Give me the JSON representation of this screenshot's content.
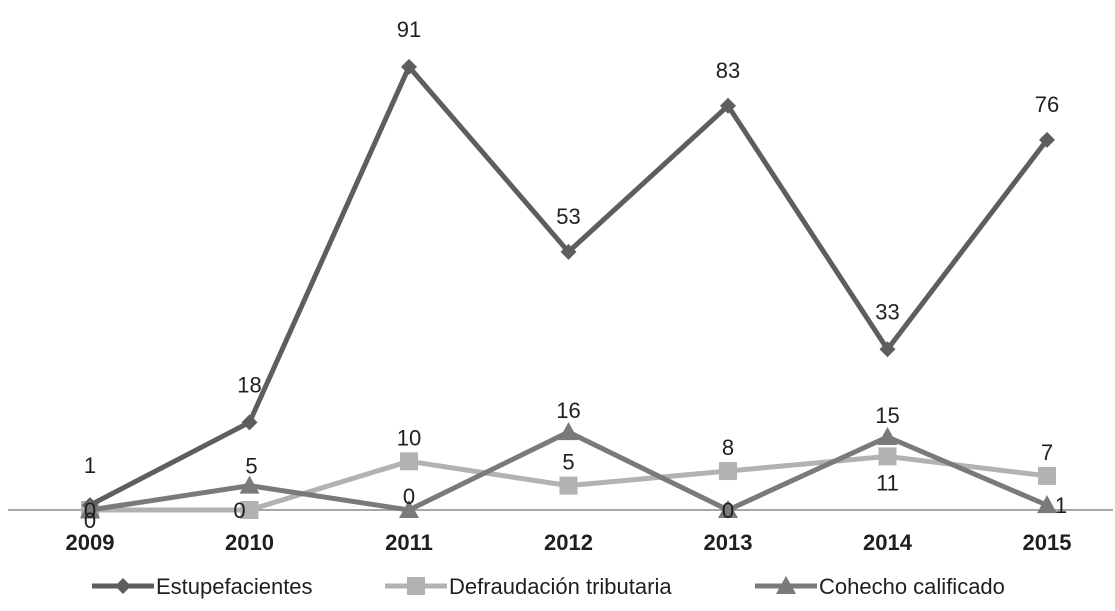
{
  "chart_data": {
    "type": "line",
    "title": "",
    "xlabel": "",
    "ylabel": "",
    "categories": [
      "2009",
      "2010",
      "2011",
      "2012",
      "2013",
      "2014",
      "2015"
    ],
    "ylim": [
      0,
      100
    ],
    "grid": false,
    "legend": "bottom",
    "series": [
      {
        "name": "Estupefacientes",
        "values": [
          1,
          18,
          91,
          53,
          83,
          33,
          76
        ],
        "marker": "diamond",
        "color": "#5e5e5e"
      },
      {
        "name": "Defraudación tributaria",
        "values": [
          0,
          0,
          10,
          5,
          8,
          11,
          7
        ],
        "marker": "square",
        "color": "#b2b2b2"
      },
      {
        "name": "Cohecho calificado",
        "values": [
          0,
          5,
          0,
          16,
          0,
          15,
          1
        ],
        "marker": "triangle",
        "color": "#7a7a7a"
      }
    ]
  }
}
